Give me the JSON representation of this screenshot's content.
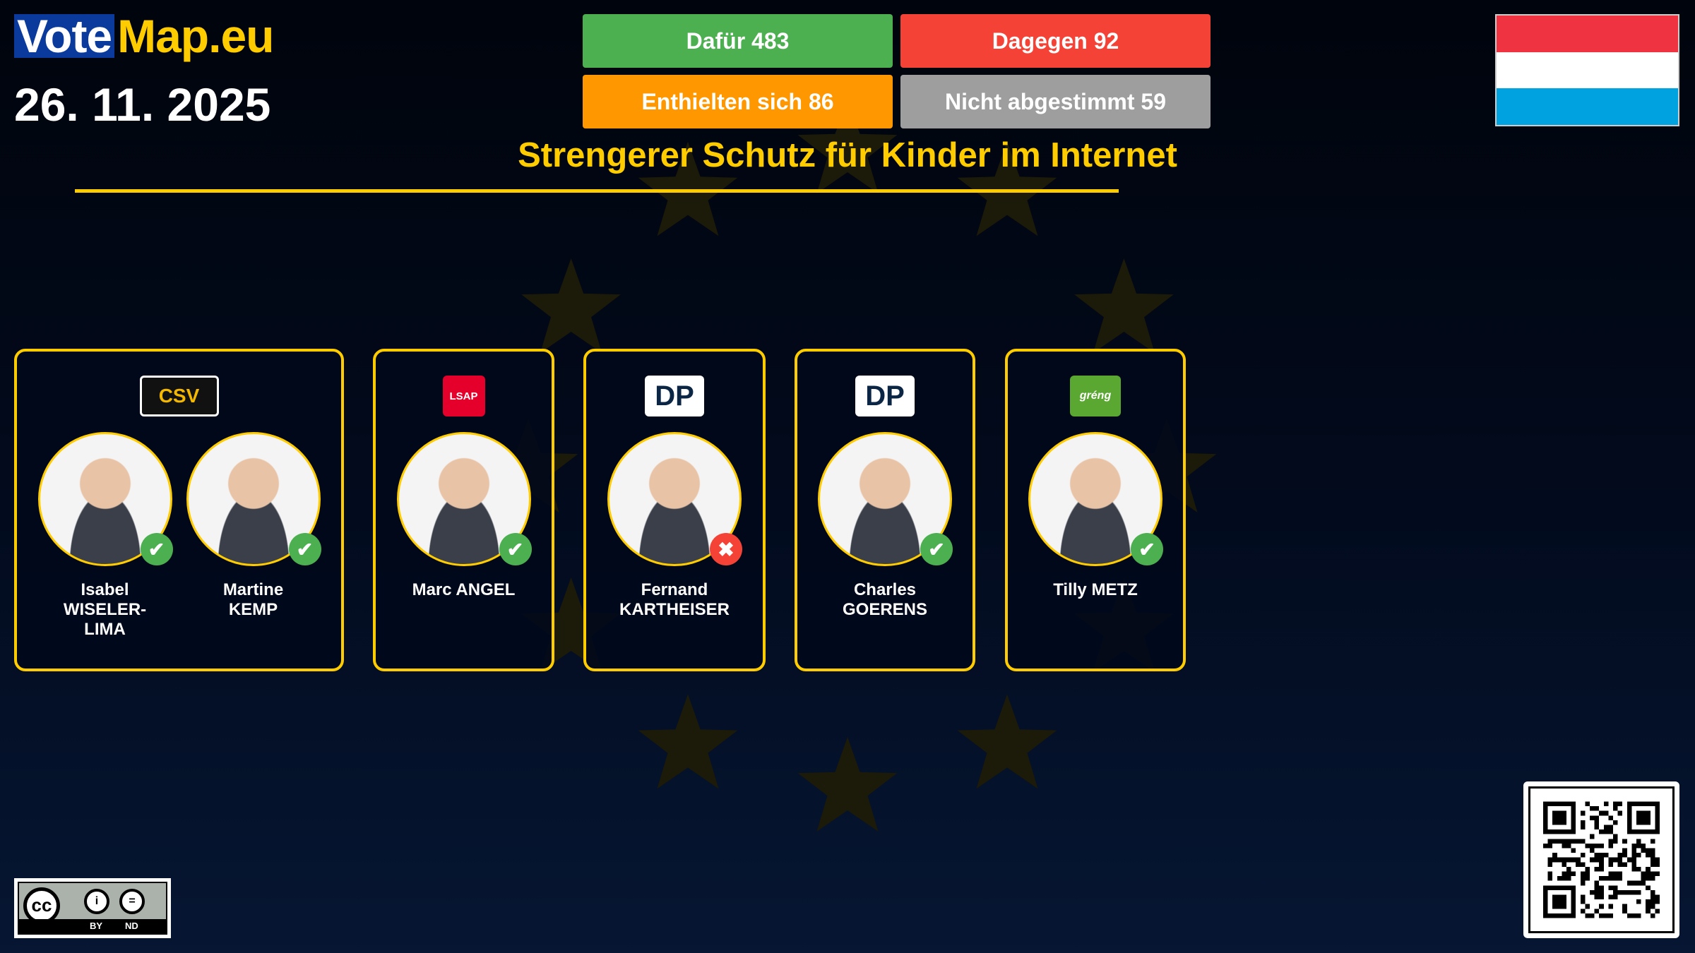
{
  "brand": {
    "vote": "Vote",
    "map": "Map.eu"
  },
  "date": "26. 11. 2025",
  "results": {
    "for": {
      "label": "Dafür 483",
      "color": "#4caf50"
    },
    "against": {
      "label": "Dagegen 92",
      "color": "#f44336"
    },
    "abstain": {
      "label": "Enthielten sich 86",
      "color": "#ff9800"
    },
    "not_voted": {
      "label": "Nicht abgestimmt 59",
      "color": "#9e9e9e"
    }
  },
  "vote_title": "Strengerer Schutz für Kinder im Internet",
  "country_flag": {
    "colors": [
      "#ef3340",
      "#ffffff",
      "#00a3e0"
    ]
  },
  "groups": [
    {
      "party": "CSV",
      "party_color": "#000000",
      "meps": [
        {
          "name": "Isabel WISELER-LIMA",
          "vote": "for"
        },
        {
          "name": "Martine KEMP",
          "vote": "for"
        }
      ]
    },
    {
      "party": "LSAP",
      "party_color": "#e4002b",
      "meps": [
        {
          "name": "Marc ANGEL",
          "vote": "for"
        }
      ]
    },
    {
      "party": "DP",
      "party_color": "#0b2545",
      "meps": [
        {
          "name": "Fernand KARTHEISER",
          "vote": "against"
        }
      ]
    },
    {
      "party": "DP",
      "party_color": "#0b2545",
      "meps": [
        {
          "name": "Charles GOERENS",
          "vote": "for"
        }
      ]
    },
    {
      "party": "gréng",
      "party_color": "#5aa832",
      "meps": [
        {
          "name": "Tilly METZ",
          "vote": "for"
        }
      ]
    }
  ],
  "license": {
    "by": "BY",
    "nd": "ND",
    "cc": "cc"
  }
}
